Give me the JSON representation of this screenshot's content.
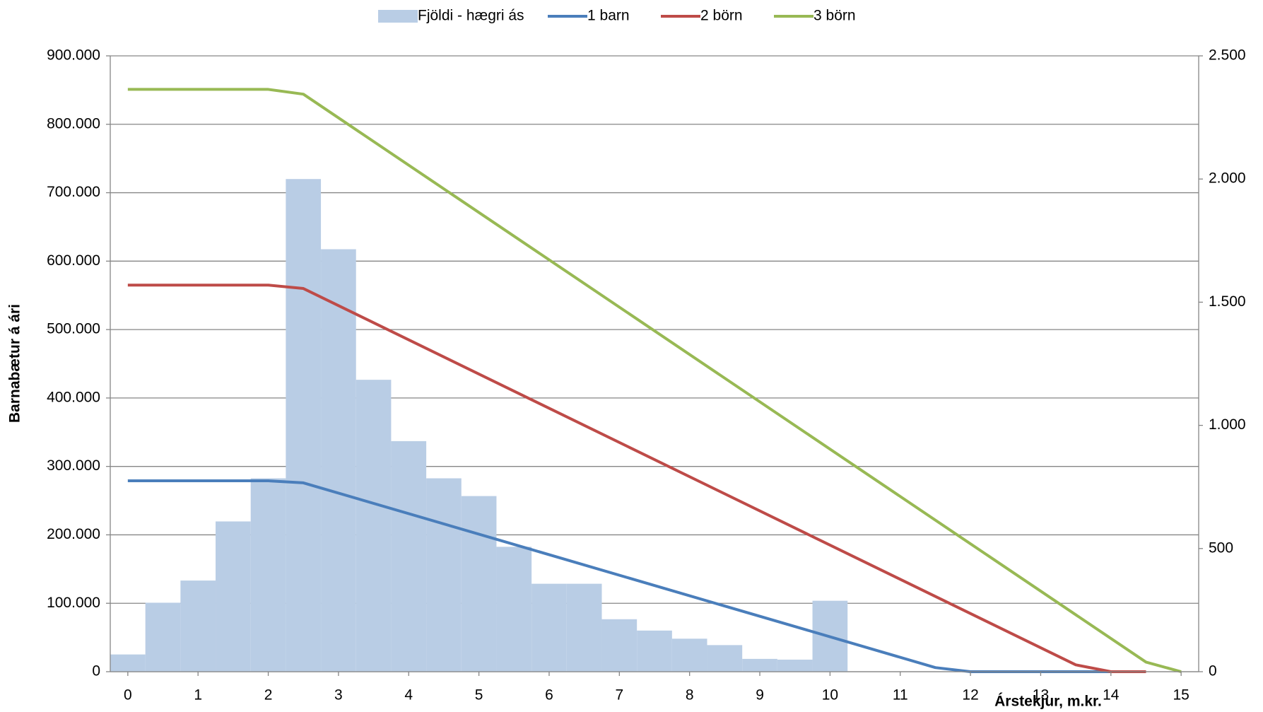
{
  "chart_data": {
    "type": "combo",
    "y_label": "Barnabætur á ári",
    "x_label": "Árstekjur, m.kr.",
    "xlim": [
      -0.25,
      15.25
    ],
    "xticks": [
      0,
      1,
      2,
      3,
      4,
      5,
      6,
      7,
      8,
      9,
      10,
      11,
      12,
      13,
      14,
      15
    ],
    "ylim": [
      0,
      900000
    ],
    "yticks": [
      0,
      {
        "value": 100000,
        "label": "100.000"
      },
      {
        "value": 200000,
        "label": "200.000"
      },
      {
        "value": 300000,
        "label": "300.000"
      },
      {
        "value": 400000,
        "label": "400.000"
      },
      {
        "value": 500000,
        "label": "500.000"
      },
      {
        "value": 600000,
        "label": "600.000"
      },
      {
        "value": 700000,
        "label": "700.000"
      },
      {
        "value": 800000,
        "label": "800.000"
      },
      {
        "value": 900000,
        "label": "900.000"
      }
    ],
    "y2lim": [
      0,
      2500
    ],
    "y2ticks": [
      0,
      500,
      {
        "value": 1000,
        "label": "1.000"
      },
      {
        "value": 1500,
        "label": "1.500"
      },
      {
        "value": 2000,
        "label": "2.000"
      },
      {
        "value": 2500,
        "label": "2.500"
      }
    ],
    "grid": true,
    "legend": "top",
    "series": [
      {
        "name": "Fjöldi - hægri ás",
        "type": "bar",
        "axis": "y2",
        "color": "#b9cde5",
        "bins": [
          -0.25,
          0.25,
          0.75,
          1.25,
          1.75,
          2.25,
          2.75,
          3.25,
          3.75,
          4.25,
          4.75,
          5.25,
          5.75,
          6.25,
          6.75,
          7.25,
          7.75,
          8.25,
          8.75,
          9.25,
          9.75,
          10.25
        ],
        "values": [
          70,
          280,
          370,
          610,
          785,
          2000,
          1715,
          1185,
          936,
          785,
          713,
          507,
          357,
          357,
          213,
          167,
          134,
          108,
          52,
          49,
          288
        ]
      },
      {
        "name": "1 barn",
        "type": "line",
        "color": "#4a7ebb",
        "x": [
          0,
          2,
          2.5,
          11.5,
          12,
          14
        ],
        "values": [
          279000,
          279000,
          276000,
          6000,
          0,
          0
        ]
      },
      {
        "name": "2 börn",
        "type": "line",
        "color": "#be4b48",
        "x": [
          0,
          2,
          2.5,
          13.5,
          14,
          14.5
        ],
        "values": [
          565000,
          565000,
          560000,
          10000,
          0,
          0
        ]
      },
      {
        "name": "3 börn",
        "type": "line",
        "color": "#98b954",
        "x": [
          0,
          2,
          2.5,
          14.5,
          15
        ],
        "values": [
          851000,
          851000,
          844000,
          14000,
          0
        ]
      }
    ]
  }
}
